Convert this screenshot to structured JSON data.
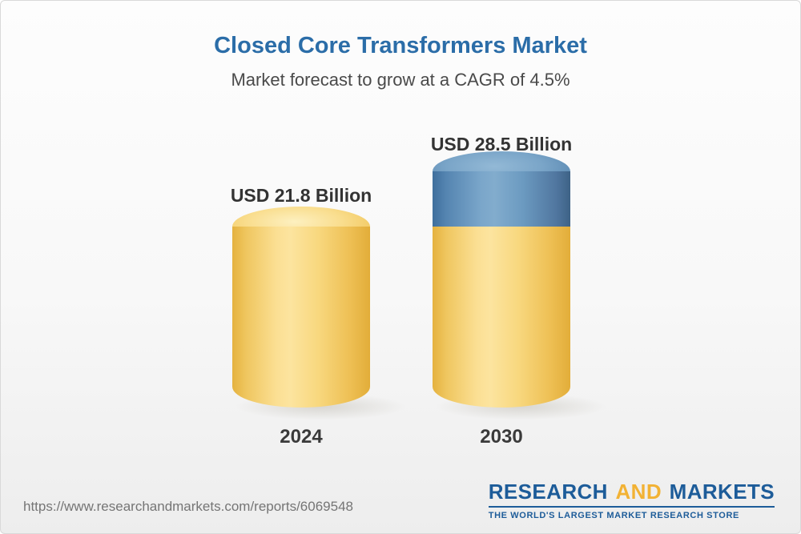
{
  "chart_data": {
    "type": "bar",
    "subtype": "3d-cylinder",
    "title": "Closed Core Transformers Market",
    "subtitle": "Market forecast to grow at a CAGR of 4.5%",
    "cagr_percent": 4.5,
    "unit": "USD Billion",
    "categories": [
      "2024",
      "2030"
    ],
    "values": [
      21.8,
      28.5
    ],
    "value_labels": [
      "USD 21.8 Billion",
      "USD 28.5 Billion"
    ],
    "series_note": "2030 cylinder shows 2024 baseline (21.8, gold) plus growth segment (6.7, blue) stacked on top",
    "legend_position": "none",
    "grid": false,
    "colors": {
      "base_segment": "#f6cd68",
      "growth_segment": "#5b8db8",
      "title": "#2b6da8"
    }
  },
  "footer": {
    "url": "https://www.researchandmarkets.com/reports/6069548",
    "logo": {
      "part1": "RESEARCH",
      "part2": "AND",
      "part3": "MARKETS",
      "tagline": "THE WORLD'S LARGEST MARKET RESEARCH STORE",
      "blue": "#1d5c99",
      "gold": "#f2b234"
    }
  }
}
